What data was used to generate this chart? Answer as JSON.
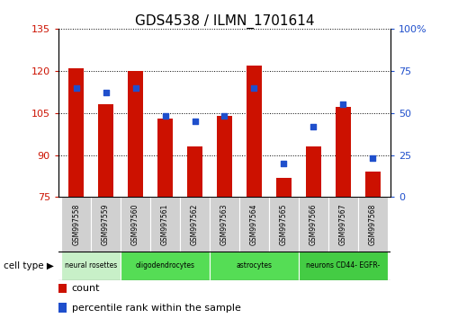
{
  "title": "GDS4538 / ILMN_1701614",
  "samples": [
    "GSM997558",
    "GSM997559",
    "GSM997560",
    "GSM997561",
    "GSM997562",
    "GSM997563",
    "GSM997564",
    "GSM997565",
    "GSM997566",
    "GSM997567",
    "GSM997568"
  ],
  "counts": [
    121,
    108,
    120,
    103,
    93,
    104,
    122,
    82,
    93,
    107,
    84
  ],
  "percentiles": [
    65,
    62,
    65,
    48,
    45,
    48,
    65,
    20,
    42,
    55,
    23
  ],
  "ylim_left": [
    75,
    135
  ],
  "ylim_right": [
    0,
    100
  ],
  "yticks_left": [
    75,
    90,
    105,
    120,
    135
  ],
  "yticks_right": [
    0,
    25,
    50,
    75,
    100
  ],
  "bar_color": "#cc1100",
  "dot_color": "#1f4fcc",
  "cell_type_groups": [
    {
      "label": "neural rosettes",
      "indices": [
        0,
        1
      ],
      "color": "#c8f0c8"
    },
    {
      "label": "oligodendrocytes",
      "indices": [
        2,
        3,
        4
      ],
      "color": "#66dd66"
    },
    {
      "label": "astrocytes",
      "indices": [
        5,
        6,
        7
      ],
      "color": "#66dd66"
    },
    {
      "label": "neurons CD44- EGFR-",
      "indices": [
        8,
        9,
        10
      ],
      "color": "#44cc44"
    }
  ],
  "cell_type_label": "cell type",
  "legend_count": "count",
  "legend_pct": "percentile rank within the sample",
  "left_color": "#cc1100",
  "right_color": "#1f4fcc",
  "sample_box_color": "#d0d0d0",
  "bar_width": 0.5
}
